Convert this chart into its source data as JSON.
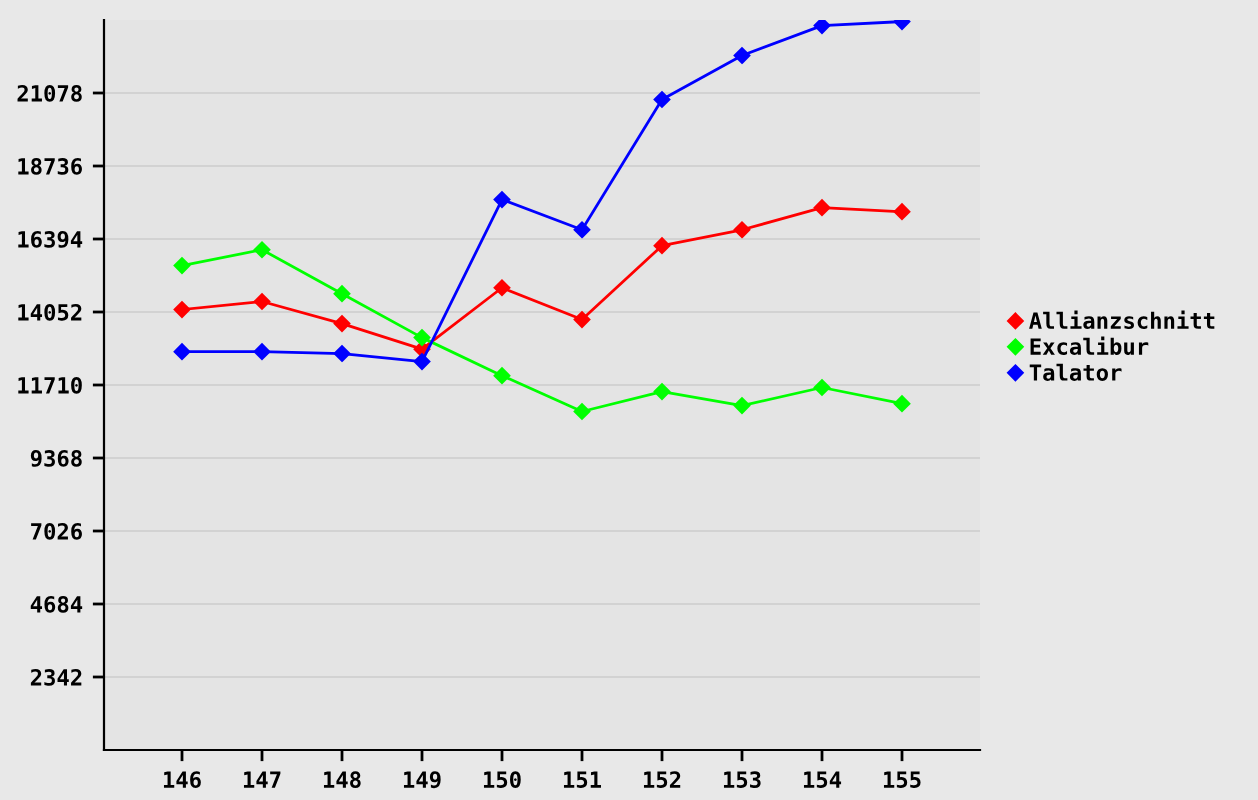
{
  "chart_data": {
    "type": "line",
    "categories": [
      "146",
      "147",
      "148",
      "149",
      "150",
      "151",
      "152",
      "153",
      "154",
      "155"
    ],
    "series": [
      {
        "name": "Allianzschnitt",
        "color": "#ff0000",
        "values": [
          14130,
          14390,
          13680,
          12860,
          14830,
          13810,
          16180,
          16690,
          17400,
          17270
        ]
      },
      {
        "name": "Excalibur",
        "color": "#00ff00",
        "values": [
          15540,
          16050,
          14640,
          13230,
          12010,
          10860,
          11500,
          11050,
          11630,
          11110
        ]
      },
      {
        "name": "Talator",
        "color": "#0000ff",
        "values": [
          12780,
          12780,
          12720,
          12460,
          17660,
          16690,
          20870,
          22280,
          23240,
          23370
        ]
      }
    ],
    "ylim": [
      0,
      23420
    ],
    "yticks": [
      2342,
      4684,
      7026,
      9368,
      11710,
      14052,
      16394,
      18736,
      21078
    ],
    "grid": "y",
    "legend": "right",
    "marker": "diamond",
    "line_style": "solid"
  }
}
